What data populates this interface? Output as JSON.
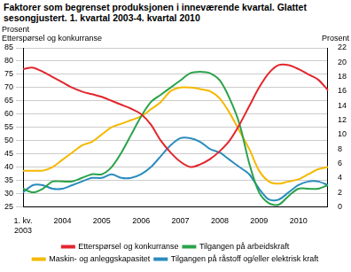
{
  "chart_data": {
    "type": "line",
    "title": "Faktorer som begrenset produksjonen i inneværende kvartal. Glattet sesongjustert. 1. kvartal 2003-4. kvartal 2010",
    "ylabel": "Prosent\nEtterspørsel og konkurranse",
    "y2label": "Prosent",
    "categories": [
      "1. kv.\n2003",
      null,
      null,
      null,
      "2004",
      null,
      null,
      null,
      "2005",
      null,
      null,
      null,
      "2006",
      null,
      null,
      null,
      "2007",
      null,
      null,
      null,
      "2008",
      null,
      null,
      null,
      "2009",
      null,
      null,
      null,
      "2010",
      null,
      null,
      null
    ],
    "series": [
      {
        "name": "Etterspørsel og konkurranse",
        "color": "#e3262e",
        "axis": "y",
        "values": [
          77,
          77.5,
          76,
          74,
          72,
          70,
          68.5,
          67.5,
          66.5,
          65,
          63.5,
          62,
          60,
          56,
          50,
          45.5,
          42,
          40,
          41,
          43,
          46,
          50,
          56,
          63,
          70,
          75.5,
          78.5,
          78.5,
          77,
          75,
          73,
          69
        ]
      },
      {
        "name": "Tilgangen på arbeidskraft",
        "color": "#2aa24a",
        "axis": "y2",
        "values": [
          2.5,
          2,
          2.5,
          3.5,
          3.5,
          3.5,
          4,
          4.5,
          4.5,
          5.5,
          7.5,
          10,
          12.5,
          14.5,
          15.5,
          16.5,
          17.5,
          18.5,
          18.7,
          18.5,
          17.5,
          15,
          11.5,
          6,
          2,
          0.5,
          0.3,
          1.5,
          2.5,
          2.5,
          2.5,
          3
        ]
      },
      {
        "name": "Maskin- og anleggskapasitet",
        "color": "#f5b800",
        "axis": "y2",
        "values": [
          5,
          5,
          5,
          5.5,
          6.5,
          7.5,
          8.5,
          9,
          10,
          11,
          11.5,
          12,
          12.5,
          13.5,
          14.5,
          16,
          16.5,
          16.5,
          16.3,
          16,
          15,
          13,
          10.5,
          8,
          5,
          3.5,
          3.2,
          3.5,
          3.8,
          4.5,
          5.2,
          5.5
        ]
      },
      {
        "name": "Tilgangen på råstoff og/eller elektrisk kraft",
        "color": "#2b8cbe",
        "axis": "y2",
        "values": [
          2,
          3,
          3,
          2.5,
          2.5,
          3,
          3.5,
          4,
          4,
          4.5,
          4,
          4,
          4.5,
          5.5,
          7,
          8.5,
          9.5,
          9.5,
          9,
          8,
          7.5,
          6.5,
          5.5,
          4.5,
          2.5,
          1,
          1,
          2,
          3,
          3.5,
          3.5,
          3
        ]
      }
    ],
    "ylim": [
      25,
      85
    ],
    "yticks": [
      25,
      30,
      35,
      40,
      45,
      50,
      55,
      60,
      65,
      70,
      75,
      80,
      85
    ],
    "y2lim": [
      0,
      22
    ],
    "y2ticks": [
      0,
      2,
      4,
      6,
      8,
      10,
      12,
      14,
      16,
      18,
      20,
      22
    ],
    "grid": true,
    "legend": "bottom"
  }
}
